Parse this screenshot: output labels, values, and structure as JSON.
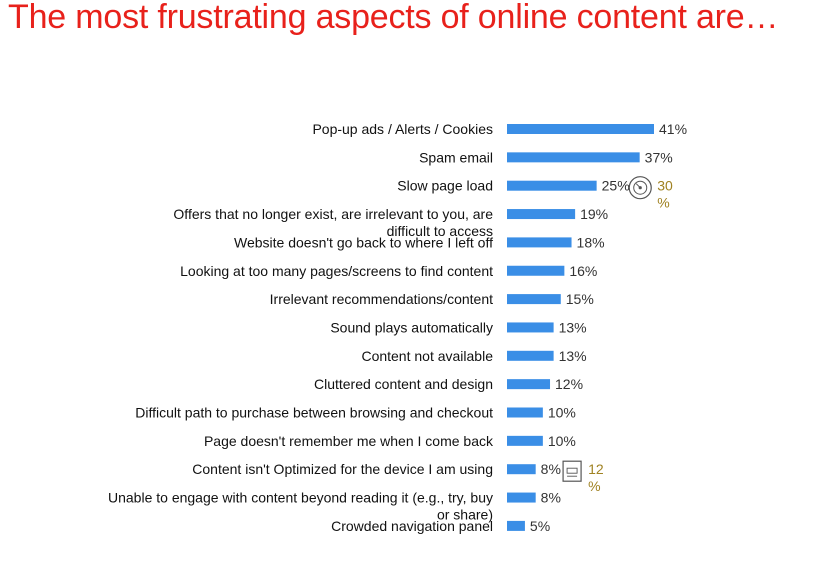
{
  "title": "The most frustrating aspects of online content are…",
  "colors": {
    "title": "#e8211b",
    "bar": "#3a8ee6",
    "annotation": "#a08222"
  },
  "chart_data": {
    "type": "bar",
    "orientation": "horizontal",
    "title": "",
    "xlabel": "",
    "ylabel": "",
    "xlim": [
      0,
      41
    ],
    "grid": false,
    "categories": [
      "Pop-up ads / Alerts / Cookies",
      "Spam email",
      "Slow page load",
      "Offers that no longer exist, are irrelevant to you, are difficult to access",
      "Website doesn't go back to where I left off",
      "Looking at too many pages/screens to find content",
      "Irrelevant recommendations/content",
      "Sound plays automatically",
      "Content not available",
      "Cluttered content and design",
      "Difficult path to purchase between browsing and checkout",
      "Page doesn't remember me when I come back",
      "Content isn't Optimized for the device I am using",
      "Unable to engage with content beyond reading it (e.g., try, buy or share)",
      "Crowded navigation panel"
    ],
    "values": [
      41,
      37,
      25,
      19,
      18,
      16,
      15,
      13,
      13,
      12,
      10,
      10,
      8,
      8,
      5
    ],
    "value_labels": [
      "41%",
      "37%",
      "25%",
      "19%",
      "18%",
      "16%",
      "15%",
      "13%",
      "13%",
      "12%",
      "10%",
      "10%",
      "8%",
      "8%",
      "5%"
    ],
    "annotations": [
      {
        "category_index": 2,
        "icon": "speedometer-icon",
        "value": 30,
        "text": "30%"
      },
      {
        "category_index": 12,
        "icon": "device-icon",
        "value": 12,
        "text": "12%"
      }
    ]
  }
}
